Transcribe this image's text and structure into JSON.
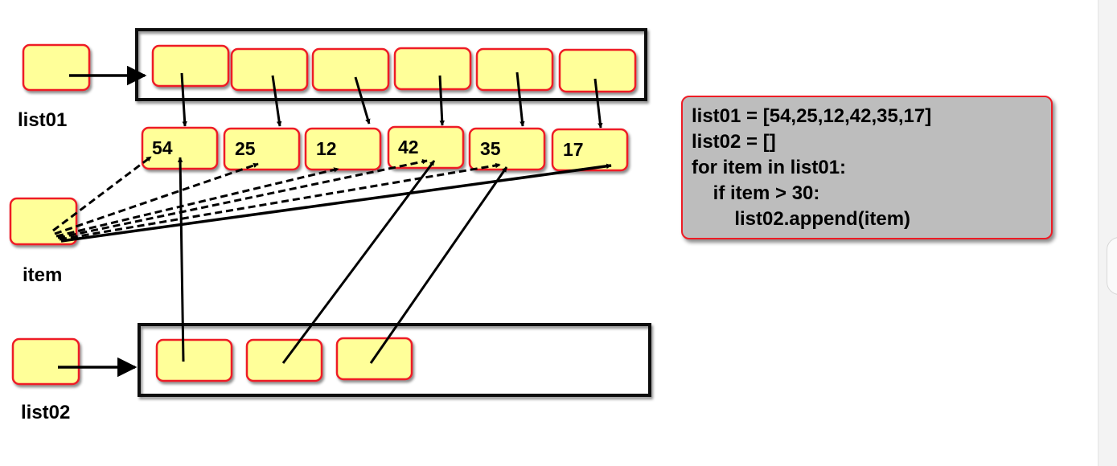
{
  "colors": {
    "cell_fill": "#ffff99",
    "cell_border": "#ee1c25",
    "code_bg": "#bdbdbd",
    "line": "#000000"
  },
  "labels": {
    "list01": "list01",
    "item": "item",
    "list02": "list02"
  },
  "values": [
    "54",
    "25",
    "12",
    "42",
    "35",
    "17"
  ],
  "code": {
    "lines": [
      "list01 = [54,25,12,42,35,17]",
      "list02 = []",
      "for item in list01:",
      "    if item > 30:",
      "        list02.append(item)"
    ]
  }
}
